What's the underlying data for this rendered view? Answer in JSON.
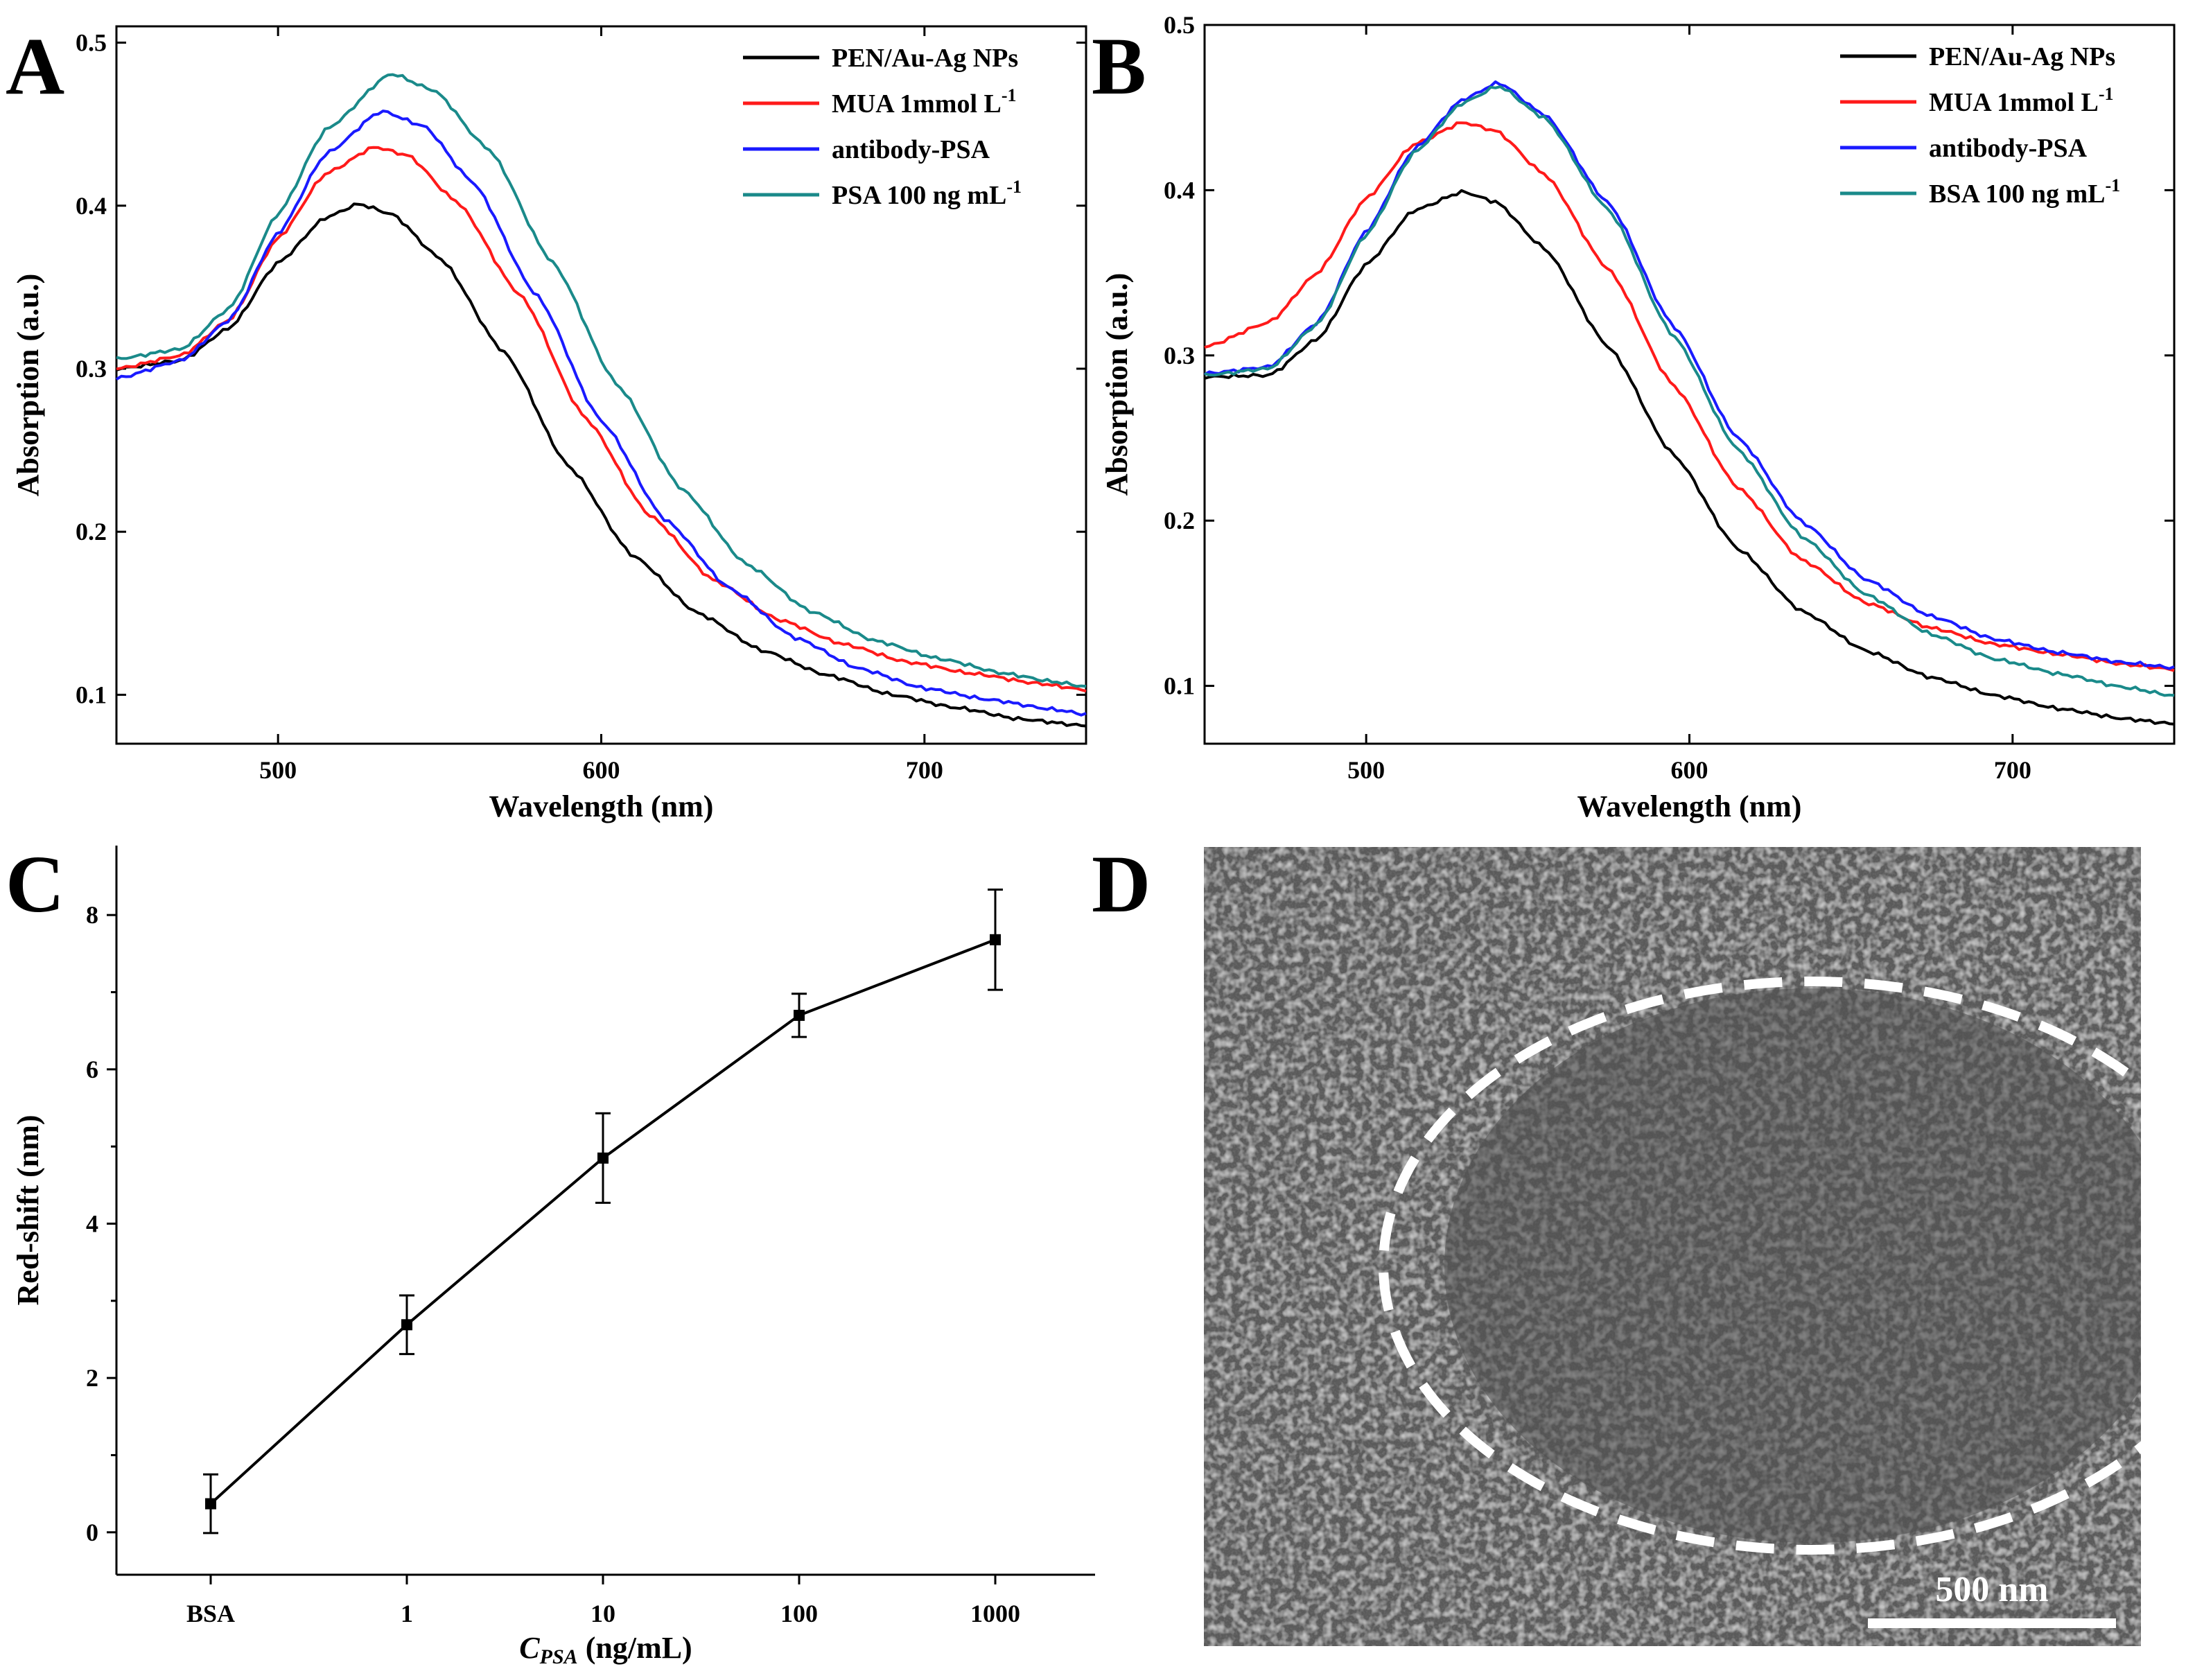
{
  "panel_labels": {
    "a": "A",
    "b": "B",
    "c": "C",
    "d": "D"
  },
  "colors": {
    "black": "#000000",
    "red": "#ff1a1a",
    "blue": "#1a1aff",
    "teal": "#1a8a8a"
  },
  "chart_data": [
    {
      "id": "A",
      "type": "line",
      "title": "",
      "xlabel": "Wavelength (nm)",
      "ylabel": "Absorption (a.u.)",
      "xlim": [
        450,
        750
      ],
      "ylim": [
        0.07,
        0.51
      ],
      "xticks": [
        500,
        600,
        700
      ],
      "yticks": [
        0.1,
        0.2,
        0.3,
        0.4,
        0.5
      ],
      "legend_position": "top-right",
      "series": [
        {
          "name": "PEN/Au-Ag NPs",
          "color": "#000000",
          "points": [
            [
              450,
              0.3
            ],
            [
              470,
              0.305
            ],
            [
              485,
              0.325
            ],
            [
              500,
              0.365
            ],
            [
              515,
              0.393
            ],
            [
              525,
              0.401
            ],
            [
              535,
              0.395
            ],
            [
              550,
              0.368
            ],
            [
              570,
              0.31
            ],
            [
              590,
              0.24
            ],
            [
              610,
              0.185
            ],
            [
              630,
              0.15
            ],
            [
              650,
              0.127
            ],
            [
              670,
              0.112
            ],
            [
              690,
              0.1
            ],
            [
              710,
              0.092
            ],
            [
              730,
              0.085
            ],
            [
              750,
              0.081
            ]
          ]
        },
        {
          "name": "MUA 1mmol L⁻¹",
          "color": "#ff1a1a",
          "points": [
            [
              450,
              0.3
            ],
            [
              470,
              0.308
            ],
            [
              485,
              0.33
            ],
            [
              500,
              0.38
            ],
            [
              515,
              0.42
            ],
            [
              530,
              0.436
            ],
            [
              540,
              0.431
            ],
            [
              555,
              0.403
            ],
            [
              575,
              0.345
            ],
            [
              595,
              0.27
            ],
            [
              615,
              0.21
            ],
            [
              635,
              0.17
            ],
            [
              655,
              0.146
            ],
            [
              675,
              0.131
            ],
            [
              695,
              0.12
            ],
            [
              715,
              0.113
            ],
            [
              735,
              0.107
            ],
            [
              750,
              0.103
            ]
          ]
        },
        {
          "name": "antibody-PSA",
          "color": "#1a1aff",
          "points": [
            [
              450,
              0.294
            ],
            [
              470,
              0.305
            ],
            [
              485,
              0.33
            ],
            [
              500,
              0.383
            ],
            [
              515,
              0.432
            ],
            [
              532,
              0.458
            ],
            [
              545,
              0.449
            ],
            [
              560,
              0.415
            ],
            [
              580,
              0.345
            ],
            [
              600,
              0.268
            ],
            [
              620,
              0.207
            ],
            [
              640,
              0.165
            ],
            [
              660,
              0.135
            ],
            [
              680,
              0.116
            ],
            [
              700,
              0.104
            ],
            [
              720,
              0.097
            ],
            [
              740,
              0.091
            ],
            [
              750,
              0.088
            ]
          ]
        },
        {
          "name": "PSA 100 ng mL⁻¹",
          "color": "#1a8a8a",
          "points": [
            [
              450,
              0.306
            ],
            [
              470,
              0.312
            ],
            [
              485,
              0.337
            ],
            [
              500,
              0.395
            ],
            [
              515,
              0.447
            ],
            [
              535,
              0.481
            ],
            [
              548,
              0.471
            ],
            [
              565,
              0.435
            ],
            [
              585,
              0.365
            ],
            [
              605,
              0.29
            ],
            [
              625,
              0.226
            ],
            [
              645,
              0.18
            ],
            [
              665,
              0.151
            ],
            [
              685,
              0.133
            ],
            [
              705,
              0.122
            ],
            [
              725,
              0.113
            ],
            [
              740,
              0.108
            ],
            [
              750,
              0.105
            ]
          ]
        }
      ],
      "legend_labels": [
        {
          "base": "PEN/Au-Ag NPs",
          "sup": ""
        },
        {
          "base": "MUA 1mmol L",
          "sup": "-1"
        },
        {
          "base": "antibody-PSA",
          "sup": ""
        },
        {
          "base": "PSA 100 ng mL",
          "sup": "-1"
        }
      ]
    },
    {
      "id": "B",
      "type": "line",
      "title": "",
      "xlabel": "Wavelength (nm)",
      "ylabel": "Absorption (a.u.)",
      "xlim": [
        450,
        750
      ],
      "ylim": [
        0.065,
        0.5
      ],
      "xticks": [
        500,
        600,
        700
      ],
      "yticks": [
        0.1,
        0.2,
        0.3,
        0.4,
        0.5
      ],
      "legend_position": "top-right",
      "series": [
        {
          "name": "PEN/Au-Ag NPs",
          "color": "#000000",
          "points": [
            [
              450,
              0.287
            ],
            [
              470,
              0.288
            ],
            [
              485,
              0.31
            ],
            [
              500,
              0.355
            ],
            [
              515,
              0.388
            ],
            [
              530,
              0.399
            ],
            [
              540,
              0.393
            ],
            [
              555,
              0.365
            ],
            [
              575,
              0.305
            ],
            [
              595,
              0.24
            ],
            [
              615,
              0.183
            ],
            [
              635,
              0.145
            ],
            [
              655,
              0.121
            ],
            [
              675,
              0.105
            ],
            [
              695,
              0.094
            ],
            [
              715,
              0.086
            ],
            [
              735,
              0.08
            ],
            [
              750,
              0.077
            ]
          ]
        },
        {
          "name": "MUA 1mmol L⁻¹",
          "color": "#ff1a1a",
          "points": [
            [
              450,
              0.305
            ],
            [
              470,
              0.32
            ],
            [
              485,
              0.35
            ],
            [
              500,
              0.395
            ],
            [
              515,
              0.428
            ],
            [
              530,
              0.441
            ],
            [
              540,
              0.436
            ],
            [
              555,
              0.41
            ],
            [
              575,
              0.352
            ],
            [
              595,
              0.282
            ],
            [
              615,
              0.22
            ],
            [
              635,
              0.176
            ],
            [
              655,
              0.15
            ],
            [
              675,
              0.135
            ],
            [
              695,
              0.125
            ],
            [
              715,
              0.119
            ],
            [
              735,
              0.113
            ],
            [
              750,
              0.11
            ]
          ]
        },
        {
          "name": "antibody-PSA",
          "color": "#1a1aff",
          "points": [
            [
              450,
              0.289
            ],
            [
              470,
              0.293
            ],
            [
              485,
              0.32
            ],
            [
              500,
              0.375
            ],
            [
              515,
              0.425
            ],
            [
              530,
              0.455
            ],
            [
              541,
              0.465
            ],
            [
              555,
              0.446
            ],
            [
              575,
              0.392
            ],
            [
              595,
              0.318
            ],
            [
              615,
              0.25
            ],
            [
              635,
              0.199
            ],
            [
              655,
              0.164
            ],
            [
              675,
              0.142
            ],
            [
              695,
              0.128
            ],
            [
              715,
              0.12
            ],
            [
              735,
              0.114
            ],
            [
              750,
              0.111
            ]
          ]
        },
        {
          "name": "BSA 100 ng mL⁻¹",
          "color": "#1a8a8a",
          "points": [
            [
              450,
              0.288
            ],
            [
              470,
              0.292
            ],
            [
              485,
              0.319
            ],
            [
              500,
              0.373
            ],
            [
              515,
              0.423
            ],
            [
              530,
              0.453
            ],
            [
              541,
              0.463
            ],
            [
              555,
              0.444
            ],
            [
              575,
              0.388
            ],
            [
              595,
              0.312
            ],
            [
              615,
              0.243
            ],
            [
              635,
              0.19
            ],
            [
              655,
              0.155
            ],
            [
              675,
              0.131
            ],
            [
              695,
              0.116
            ],
            [
              715,
              0.107
            ],
            [
              735,
              0.099
            ],
            [
              750,
              0.094
            ]
          ]
        }
      ],
      "legend_labels": [
        {
          "base": "PEN/Au-Ag NPs",
          "sup": ""
        },
        {
          "base": "MUA 1mmol L",
          "sup": "-1"
        },
        {
          "base": "antibody-PSA",
          "sup": ""
        },
        {
          "base": "BSA 100 ng mL",
          "sup": "-1"
        }
      ]
    },
    {
      "id": "C",
      "type": "line",
      "title": "",
      "xlabel": "C_PSA (ng/mL)",
      "xlabel_parts": {
        "main": "C",
        "sub": "PSA",
        "unit": " (ng/mL)"
      },
      "ylabel": "Red-shift (nm)",
      "categories": [
        "BSA",
        "1",
        "10",
        "100",
        "1000"
      ],
      "ylim": [
        -0.55,
        8.9
      ],
      "yticks": [
        0,
        2,
        4,
        6,
        8
      ],
      "series": [
        {
          "name": "Red-shift",
          "color": "#000000",
          "values": [
            0.37,
            2.69,
            4.85,
            6.7,
            7.68
          ],
          "errors": [
            0.38,
            0.38,
            0.58,
            0.28,
            0.65
          ]
        }
      ]
    }
  ],
  "sem_image": {
    "scale_bar_label": "500 nm",
    "highlight": "dashed ellipse"
  }
}
